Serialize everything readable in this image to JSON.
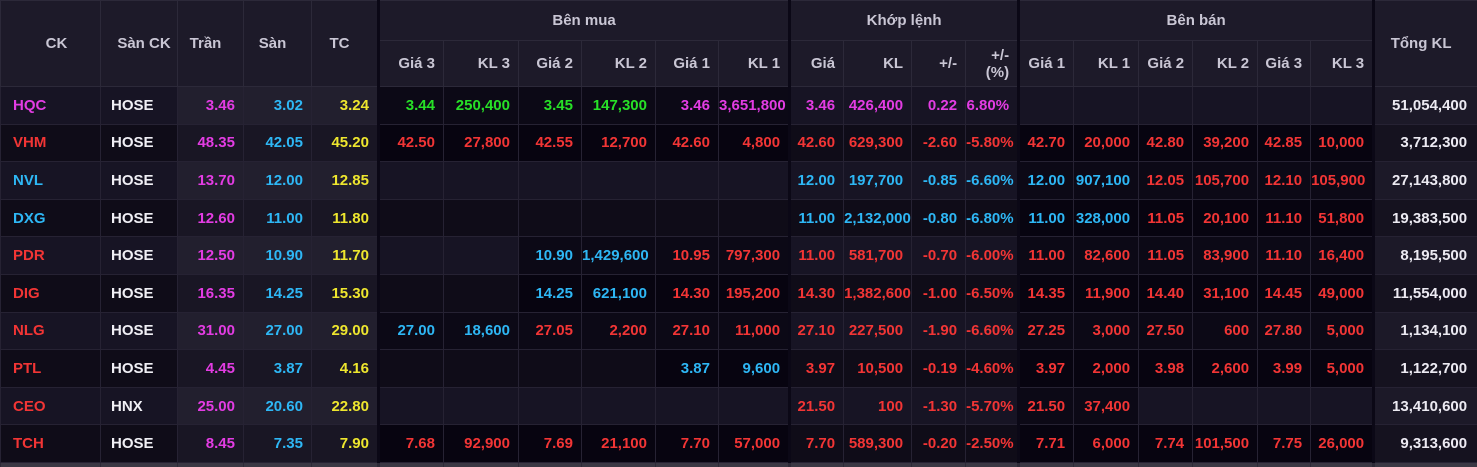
{
  "board": {
    "header": {
      "ck": "CK",
      "san_ck": "Sàn CK",
      "tran": "Trần",
      "san": "Sàn",
      "tc": "TC",
      "ben_mua": "Bên mua",
      "khop_lenh": "Khớp lệnh",
      "ben_ban": "Bên bán",
      "tong_kl": "Tổng KL",
      "buy_cols": [
        "Giá 3",
        "KL 3",
        "Giá 2",
        "KL 2",
        "Giá 1",
        "KL 1"
      ],
      "match_cols": [
        "Giá",
        "KL",
        "+/-",
        "+/-\n(%)"
      ],
      "sell_cols": [
        "Giá 1",
        "KL 1",
        "Giá 2",
        "KL 2",
        "Giá 3",
        "KL 3"
      ]
    },
    "colors": {
      "ceiling": "#e33ce3",
      "floor": "#2eb7f5",
      "reference": "#eee62e",
      "up": "#27e027",
      "down": "#f23535",
      "neutral_text": "#eceaf2",
      "header_bg": "#1d1a29",
      "row_odd_bg": "#171424",
      "row_even_bg": "#0f0c18"
    },
    "rows": [
      {
        "ticker": {
          "v": "HQC",
          "c": "m"
        },
        "exchange": "HOSE",
        "ceil": "3.46",
        "floor": "3.02",
        "ref": "3.24",
        "buy": [
          {
            "v": "3.44",
            "c": "g"
          },
          {
            "v": "250,400",
            "c": "g"
          },
          {
            "v": "3.45",
            "c": "g"
          },
          {
            "v": "147,300",
            "c": "g"
          },
          {
            "v": "3.46",
            "c": "m"
          },
          {
            "v": "3,651,800",
            "c": "m"
          }
        ],
        "match": [
          {
            "v": "3.46",
            "c": "m"
          },
          {
            "v": "426,400",
            "c": "m"
          },
          {
            "v": "0.22",
            "c": "m"
          },
          {
            "v": "6.80%",
            "c": "m"
          }
        ],
        "sell": [
          {
            "v": "",
            "c": ""
          },
          {
            "v": "",
            "c": ""
          },
          {
            "v": "",
            "c": ""
          },
          {
            "v": "",
            "c": ""
          },
          {
            "v": "",
            "c": ""
          },
          {
            "v": "",
            "c": ""
          }
        ],
        "total": "51,054,400"
      },
      {
        "ticker": {
          "v": "VHM",
          "c": "r"
        },
        "exchange": "HOSE",
        "ceil": "48.35",
        "floor": "42.05",
        "ref": "45.20",
        "buy": [
          {
            "v": "42.50",
            "c": "r"
          },
          {
            "v": "27,800",
            "c": "r"
          },
          {
            "v": "42.55",
            "c": "r"
          },
          {
            "v": "12,700",
            "c": "r"
          },
          {
            "v": "42.60",
            "c": "r"
          },
          {
            "v": "4,800",
            "c": "r"
          }
        ],
        "match": [
          {
            "v": "42.60",
            "c": "r"
          },
          {
            "v": "629,300",
            "c": "r"
          },
          {
            "v": "-2.60",
            "c": "r"
          },
          {
            "v": "-5.80%",
            "c": "r"
          }
        ],
        "sell": [
          {
            "v": "42.70",
            "c": "r"
          },
          {
            "v": "20,000",
            "c": "r"
          },
          {
            "v": "42.80",
            "c": "r"
          },
          {
            "v": "39,200",
            "c": "r"
          },
          {
            "v": "42.85",
            "c": "r"
          },
          {
            "v": "10,000",
            "c": "r"
          }
        ],
        "total": "3,712,300"
      },
      {
        "ticker": {
          "v": "NVL",
          "c": "c"
        },
        "exchange": "HOSE",
        "ceil": "13.70",
        "floor": "12.00",
        "ref": "12.85",
        "buy": [
          {
            "v": "",
            "c": ""
          },
          {
            "v": "",
            "c": ""
          },
          {
            "v": "",
            "c": ""
          },
          {
            "v": "",
            "c": ""
          },
          {
            "v": "",
            "c": ""
          },
          {
            "v": "",
            "c": ""
          }
        ],
        "match": [
          {
            "v": "12.00",
            "c": "c"
          },
          {
            "v": "197,700",
            "c": "c"
          },
          {
            "v": "-0.85",
            "c": "c"
          },
          {
            "v": "-6.60%",
            "c": "c"
          }
        ],
        "sell": [
          {
            "v": "12.00",
            "c": "c"
          },
          {
            "v": "907,100",
            "c": "c"
          },
          {
            "v": "12.05",
            "c": "r"
          },
          {
            "v": "105,700",
            "c": "r"
          },
          {
            "v": "12.10",
            "c": "r"
          },
          {
            "v": "105,900",
            "c": "r"
          }
        ],
        "total": "27,143,800"
      },
      {
        "ticker": {
          "v": "DXG",
          "c": "c"
        },
        "exchange": "HOSE",
        "ceil": "12.60",
        "floor": "11.00",
        "ref": "11.80",
        "buy": [
          {
            "v": "",
            "c": ""
          },
          {
            "v": "",
            "c": ""
          },
          {
            "v": "",
            "c": ""
          },
          {
            "v": "",
            "c": ""
          },
          {
            "v": "",
            "c": ""
          },
          {
            "v": "",
            "c": ""
          }
        ],
        "match": [
          {
            "v": "11.00",
            "c": "c"
          },
          {
            "v": "2,132,000",
            "c": "c"
          },
          {
            "v": "-0.80",
            "c": "c"
          },
          {
            "v": "-6.80%",
            "c": "c"
          }
        ],
        "sell": [
          {
            "v": "11.00",
            "c": "c"
          },
          {
            "v": "328,000",
            "c": "c"
          },
          {
            "v": "11.05",
            "c": "r"
          },
          {
            "v": "20,100",
            "c": "r"
          },
          {
            "v": "11.10",
            "c": "r"
          },
          {
            "v": "51,800",
            "c": "r"
          }
        ],
        "total": "19,383,500"
      },
      {
        "ticker": {
          "v": "PDR",
          "c": "r"
        },
        "exchange": "HOSE",
        "ceil": "12.50",
        "floor": "10.90",
        "ref": "11.70",
        "buy": [
          {
            "v": "",
            "c": ""
          },
          {
            "v": "",
            "c": ""
          },
          {
            "v": "10.90",
            "c": "c"
          },
          {
            "v": "1,429,600",
            "c": "c"
          },
          {
            "v": "10.95",
            "c": "r"
          },
          {
            "v": "797,300",
            "c": "r"
          }
        ],
        "match": [
          {
            "v": "11.00",
            "c": "r"
          },
          {
            "v": "581,700",
            "c": "r"
          },
          {
            "v": "-0.70",
            "c": "r"
          },
          {
            "v": "-6.00%",
            "c": "r"
          }
        ],
        "sell": [
          {
            "v": "11.00",
            "c": "r"
          },
          {
            "v": "82,600",
            "c": "r"
          },
          {
            "v": "11.05",
            "c": "r"
          },
          {
            "v": "83,900",
            "c": "r"
          },
          {
            "v": "11.10",
            "c": "r"
          },
          {
            "v": "16,400",
            "c": "r"
          }
        ],
        "total": "8,195,500"
      },
      {
        "ticker": {
          "v": "DIG",
          "c": "r"
        },
        "exchange": "HOSE",
        "ceil": "16.35",
        "floor": "14.25",
        "ref": "15.30",
        "buy": [
          {
            "v": "",
            "c": ""
          },
          {
            "v": "",
            "c": ""
          },
          {
            "v": "14.25",
            "c": "c"
          },
          {
            "v": "621,100",
            "c": "c"
          },
          {
            "v": "14.30",
            "c": "r"
          },
          {
            "v": "195,200",
            "c": "r"
          }
        ],
        "match": [
          {
            "v": "14.30",
            "c": "r"
          },
          {
            "v": "1,382,600",
            "c": "r"
          },
          {
            "v": "-1.00",
            "c": "r"
          },
          {
            "v": "-6.50%",
            "c": "r"
          }
        ],
        "sell": [
          {
            "v": "14.35",
            "c": "r"
          },
          {
            "v": "11,900",
            "c": "r"
          },
          {
            "v": "14.40",
            "c": "r"
          },
          {
            "v": "31,100",
            "c": "r"
          },
          {
            "v": "14.45",
            "c": "r"
          },
          {
            "v": "49,000",
            "c": "r"
          }
        ],
        "total": "11,554,000"
      },
      {
        "ticker": {
          "v": "NLG",
          "c": "r"
        },
        "exchange": "HOSE",
        "ceil": "31.00",
        "floor": "27.00",
        "ref": "29.00",
        "buy": [
          {
            "v": "27.00",
            "c": "c"
          },
          {
            "v": "18,600",
            "c": "c"
          },
          {
            "v": "27.05",
            "c": "r"
          },
          {
            "v": "2,200",
            "c": "r"
          },
          {
            "v": "27.10",
            "c": "r"
          },
          {
            "v": "11,000",
            "c": "r"
          }
        ],
        "match": [
          {
            "v": "27.10",
            "c": "r"
          },
          {
            "v": "227,500",
            "c": "r"
          },
          {
            "v": "-1.90",
            "c": "r"
          },
          {
            "v": "-6.60%",
            "c": "r"
          }
        ],
        "sell": [
          {
            "v": "27.25",
            "c": "r"
          },
          {
            "v": "3,000",
            "c": "r"
          },
          {
            "v": "27.50",
            "c": "r"
          },
          {
            "v": "600",
            "c": "r"
          },
          {
            "v": "27.80",
            "c": "r"
          },
          {
            "v": "5,000",
            "c": "r"
          }
        ],
        "total": "1,134,100"
      },
      {
        "ticker": {
          "v": "PTL",
          "c": "r"
        },
        "exchange": "HOSE",
        "ceil": "4.45",
        "floor": "3.87",
        "ref": "4.16",
        "buy": [
          {
            "v": "",
            "c": ""
          },
          {
            "v": "",
            "c": ""
          },
          {
            "v": "",
            "c": ""
          },
          {
            "v": "",
            "c": ""
          },
          {
            "v": "3.87",
            "c": "c"
          },
          {
            "v": "9,600",
            "c": "c"
          }
        ],
        "match": [
          {
            "v": "3.97",
            "c": "r"
          },
          {
            "v": "10,500",
            "c": "r"
          },
          {
            "v": "-0.19",
            "c": "r"
          },
          {
            "v": "-4.60%",
            "c": "r"
          }
        ],
        "sell": [
          {
            "v": "3.97",
            "c": "r"
          },
          {
            "v": "2,000",
            "c": "r"
          },
          {
            "v": "3.98",
            "c": "r"
          },
          {
            "v": "2,600",
            "c": "r"
          },
          {
            "v": "3.99",
            "c": "r"
          },
          {
            "v": "5,000",
            "c": "r"
          }
        ],
        "total": "1,122,700"
      },
      {
        "ticker": {
          "v": "CEO",
          "c": "r"
        },
        "exchange": "HNX",
        "ceil": "25.00",
        "floor": "20.60",
        "ref": "22.80",
        "buy": [
          {
            "v": "",
            "c": ""
          },
          {
            "v": "",
            "c": ""
          },
          {
            "v": "",
            "c": ""
          },
          {
            "v": "",
            "c": ""
          },
          {
            "v": "",
            "c": ""
          },
          {
            "v": "",
            "c": ""
          }
        ],
        "match": [
          {
            "v": "21.50",
            "c": "r"
          },
          {
            "v": "100",
            "c": "r"
          },
          {
            "v": "-1.30",
            "c": "r"
          },
          {
            "v": "-5.70%",
            "c": "r"
          }
        ],
        "sell": [
          {
            "v": "21.50",
            "c": "r"
          },
          {
            "v": "37,400",
            "c": "r"
          },
          {
            "v": "",
            "c": ""
          },
          {
            "v": "",
            "c": ""
          },
          {
            "v": "",
            "c": ""
          },
          {
            "v": "",
            "c": ""
          }
        ],
        "total": "13,410,600"
      },
      {
        "ticker": {
          "v": "TCH",
          "c": "r"
        },
        "exchange": "HOSE",
        "ceil": "8.45",
        "floor": "7.35",
        "ref": "7.90",
        "buy": [
          {
            "v": "7.68",
            "c": "r"
          },
          {
            "v": "92,900",
            "c": "r"
          },
          {
            "v": "7.69",
            "c": "r"
          },
          {
            "v": "21,100",
            "c": "r"
          },
          {
            "v": "7.70",
            "c": "r"
          },
          {
            "v": "57,000",
            "c": "r"
          }
        ],
        "match": [
          {
            "v": "7.70",
            "c": "r"
          },
          {
            "v": "589,300",
            "c": "r"
          },
          {
            "v": "-0.20",
            "c": "r"
          },
          {
            "v": "-2.50%",
            "c": "r"
          }
        ],
        "sell": [
          {
            "v": "7.71",
            "c": "r"
          },
          {
            "v": "6,000",
            "c": "r"
          },
          {
            "v": "7.74",
            "c": "r"
          },
          {
            "v": "101,500",
            "c": "r"
          },
          {
            "v": "7.75",
            "c": "r"
          },
          {
            "v": "26,000",
            "c": "r"
          }
        ],
        "total": "9,313,600"
      }
    ]
  }
}
